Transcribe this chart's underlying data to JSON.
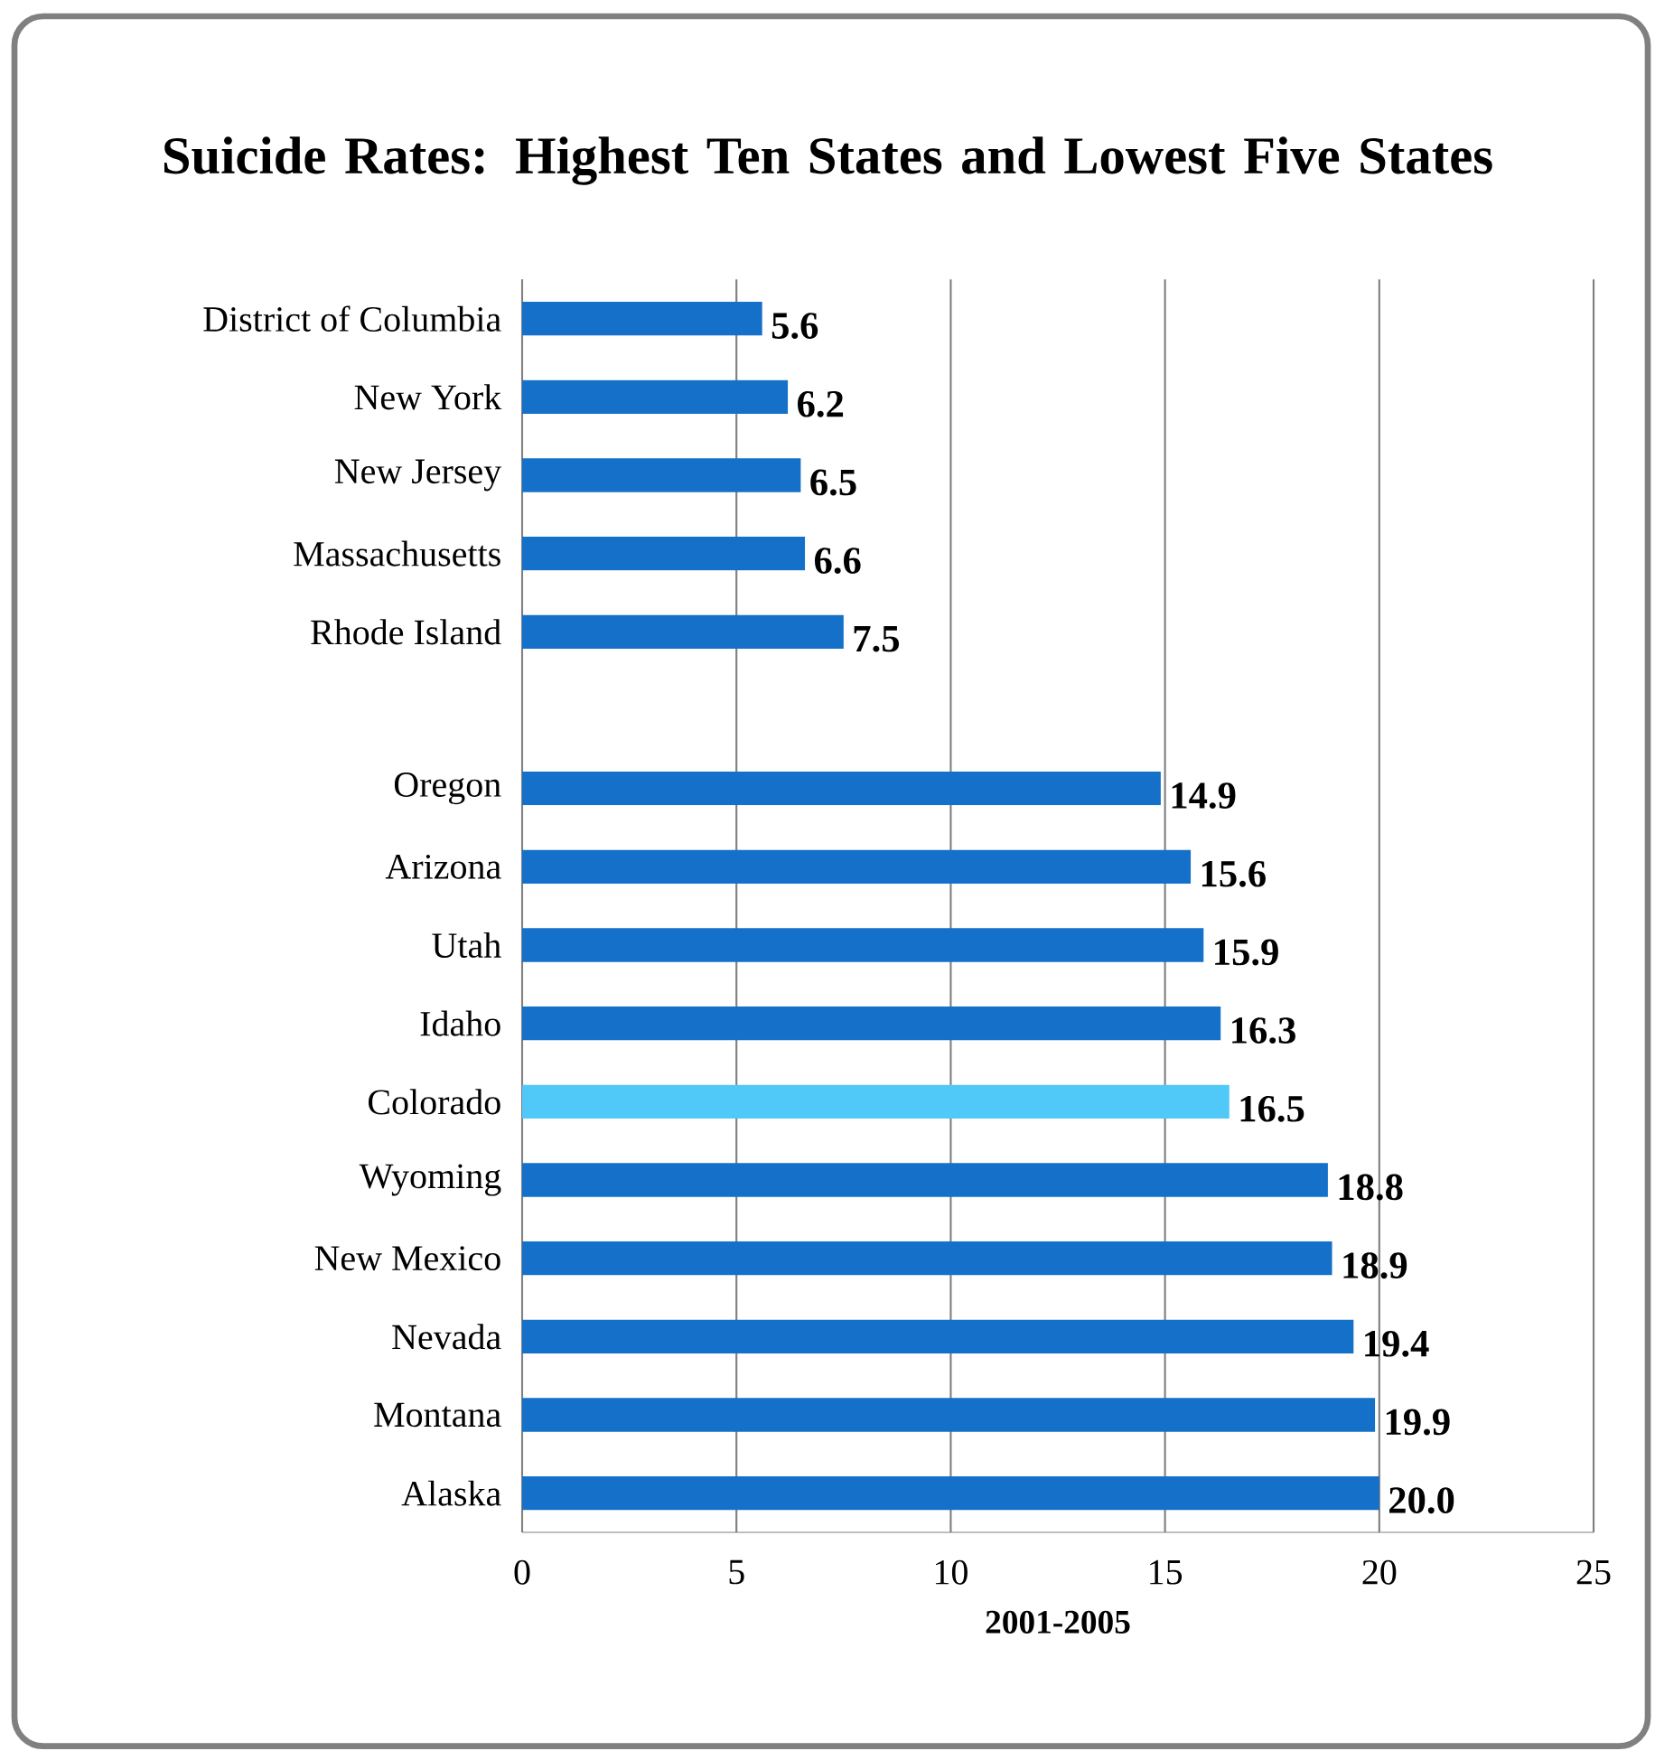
{
  "chart_data": {
    "type": "bar",
    "orientation": "horizontal",
    "title": "Suicide Rates:  Highest Ten States and Lowest Five States",
    "xlabel": "2001-2005",
    "categories": [
      "District of Columbia",
      "New York",
      "New Jersey",
      "Massachusetts",
      "Rhode Island",
      null,
      "Oregon",
      "Arizona",
      "Utah",
      "Idaho",
      "Colorado",
      "Wyoming",
      "New Mexico",
      "Nevada",
      "Montana",
      "Alaska"
    ],
    "values": [
      5.6,
      6.2,
      6.5,
      6.6,
      7.5,
      null,
      14.9,
      15.6,
      15.9,
      16.3,
      16.5,
      18.8,
      18.9,
      19.4,
      19.9,
      20.0
    ],
    "value_labels": [
      "5.6",
      "6.2",
      "6.5",
      "6.6",
      "7.5",
      null,
      "14.9",
      "15.6",
      "15.9",
      "16.3",
      "16.5",
      "18.8",
      "18.9",
      "19.4",
      "19.9",
      "20.0"
    ],
    "colors": [
      "#1470c8",
      "#1470c8",
      "#1470c8",
      "#1470c8",
      "#1470c8",
      "#1470c8",
      "#1470c8",
      "#1470c8",
      "#1470c8",
      "#1470c8",
      "#50c8f8",
      "#1470c8",
      "#1470c8",
      "#1470c8",
      "#1470c8",
      "#1470c8"
    ],
    "xlim": [
      0,
      25
    ],
    "xticks": [
      0,
      5,
      10,
      15,
      20,
      25
    ],
    "grid": "x"
  }
}
